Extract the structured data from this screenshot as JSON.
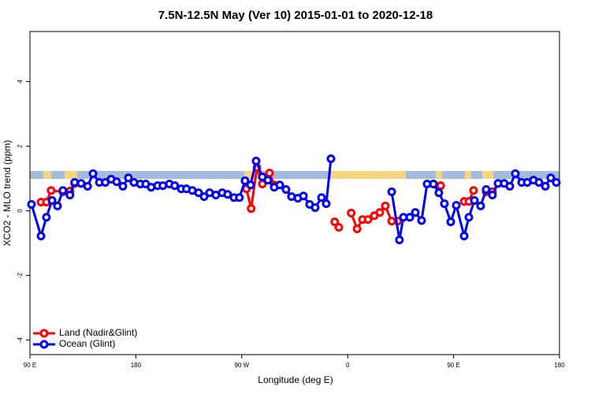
{
  "chart_data": {
    "type": "line",
    "title": "7.5N-12.5N May (Ver 10)   2015-01-01 to 2020-12-18",
    "xlabel": "Longitude (deg E)",
    "ylabel": "XCO2 - MLO trend (ppm)",
    "xlim": [
      90,
      540
    ],
    "ylim": [
      -4.45,
      5.55
    ],
    "xticks": [
      {
        "value": 90,
        "label": "90 E"
      },
      180,
      {
        "value": 270,
        "label": "90 W"
      },
      {
        "value": 360,
        "label": "0"
      },
      {
        "value": 450,
        "label": "90 E"
      },
      180.0001
    ],
    "yticks": [
      -4,
      -2,
      0,
      2,
      4
    ],
    "legend": "bottom-left",
    "series": [
      {
        "name": "Land (Nadir&Glint)",
        "color": "#ff0000",
        "x": [
          99.4,
          104,
          108,
          118,
          124,
          128,
          null,
          274,
          278,
          282.9,
          287.5,
          293.6,
          297.6,
          null,
          349,
          352.5,
          null,
          363,
          368,
          372.6,
          377.3,
          382.6,
          387.3,
          392,
          397.4,
          402.7,
          null,
          439,
          null,
          459,
          463,
          467,
          null,
          477.7,
          483,
          488
        ],
        "values": [
          0.27,
          0.27,
          0.63,
          0.59,
          0.61,
          0.85,
          null,
          0.68,
          0.07,
          1.34,
          0.83,
          1.17,
          0.8,
          null,
          -0.34,
          -0.51,
          null,
          -0.07,
          -0.56,
          -0.27,
          -0.27,
          -0.15,
          -0.05,
          0.15,
          -0.32,
          -0.32,
          null,
          0.78,
          null,
          0.29,
          0.29,
          0.63,
          null,
          0.59,
          0.59,
          0.85
        ]
      },
      {
        "name": "Ocean (Glint)",
        "color": "#0000ee",
        "x": [
          91.3,
          99.4,
          104,
          108.8,
          113.4,
          118,
          124,
          128,
          133.5,
          139,
          143.6,
          149,
          154,
          159,
          163.7,
          169,
          173.7,
          178.4,
          183.8,
          188.4,
          193,
          198.5,
          203,
          208.5,
          213,
          218.6,
          223,
          228,
          233.3,
          238,
          242.7,
          248,
          253.4,
          258,
          263.4,
          268,
          272.8,
          277.5,
          282.2,
          287.5,
          292.2,
          297.6,
          302.3,
          307.6,
          312.3,
          317.7,
          322.4,
          327.7,
          332.4,
          337.8,
          341.8,
          345.8,
          null,
          397.4,
          404,
          407.4,
          412.8,
          417.5,
          422.8,
          427.5,
          432.9,
          437.5,
          442.2,
          447.6,
          452.3,
          459,
          463,
          467.7,
          473,
          477.7,
          483,
          487.8,
          493,
          497.8,
          502.5,
          507.9,
          512.6,
          517.9,
          522.6,
          528,
          532.6,
          537.3
        ],
        "values": [
          0.2,
          -0.78,
          -0.2,
          0.32,
          0.15,
          0.63,
          0.49,
          0.88,
          0.85,
          0.76,
          1.15,
          0.88,
          0.88,
          0.98,
          0.9,
          0.76,
          1.02,
          0.88,
          0.83,
          0.83,
          0.73,
          0.78,
          0.78,
          0.83,
          0.78,
          0.68,
          0.68,
          0.63,
          0.56,
          0.44,
          0.56,
          0.49,
          0.56,
          0.51,
          0.41,
          0.41,
          0.93,
          0.8,
          1.54,
          1.05,
          0.95,
          0.73,
          0.8,
          0.66,
          0.44,
          0.39,
          0.46,
          0.2,
          0.1,
          0.41,
          0.22,
          1.61,
          null,
          0.59,
          -0.9,
          -0.2,
          -0.2,
          -0.05,
          -0.3,
          0.83,
          0.83,
          0.56,
          0.22,
          -0.34,
          0.17,
          -0.78,
          -0.2,
          0.32,
          0.15,
          0.66,
          0.49,
          0.85,
          0.85,
          0.76,
          1.15,
          0.88,
          0.88,
          0.95,
          0.88,
          0.76,
          1.02,
          0.88
        ]
      }
    ]
  }
}
